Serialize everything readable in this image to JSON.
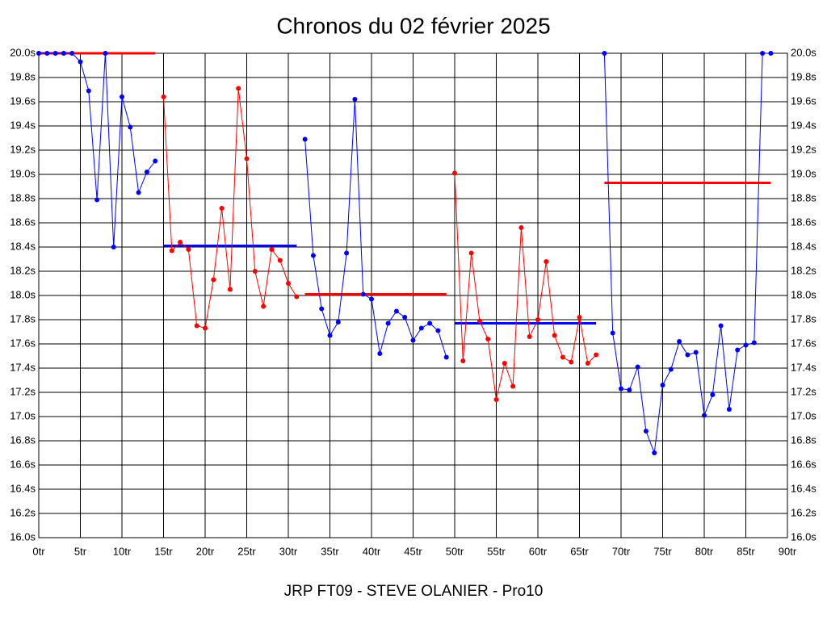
{
  "chart_data": {
    "type": "line",
    "title": "Chronos du 02 février 2025",
    "footer": "JRP FT09 - STEVE OLANIER - Pro10",
    "xlim": [
      0,
      90
    ],
    "ylim": [
      16.0,
      20.0
    ],
    "grid": true,
    "xticks": [
      {
        "value": 0,
        "label": "0tr"
      },
      {
        "value": 5,
        "label": "5tr"
      },
      {
        "value": 10,
        "label": "10tr"
      },
      {
        "value": 15,
        "label": "15tr"
      },
      {
        "value": 20,
        "label": "20tr"
      },
      {
        "value": 25,
        "label": "25tr"
      },
      {
        "value": 30,
        "label": "30tr"
      },
      {
        "value": 35,
        "label": "35tr"
      },
      {
        "value": 40,
        "label": "40tr"
      },
      {
        "value": 45,
        "label": "45tr"
      },
      {
        "value": 50,
        "label": "50tr"
      },
      {
        "value": 55,
        "label": "55tr"
      },
      {
        "value": 60,
        "label": "60tr"
      },
      {
        "value": 65,
        "label": "65tr"
      },
      {
        "value": 70,
        "label": "70tr"
      },
      {
        "value": 75,
        "label": "75tr"
      },
      {
        "value": 80,
        "label": "80tr"
      },
      {
        "value": 85,
        "label": "85tr"
      },
      {
        "value": 90,
        "label": "90tr"
      }
    ],
    "yticks": [
      {
        "value": 16.0,
        "label": "16.0s"
      },
      {
        "value": 16.2,
        "label": "16.2s"
      },
      {
        "value": 16.4,
        "label": "16.4s"
      },
      {
        "value": 16.6,
        "label": "16.6s"
      },
      {
        "value": 16.8,
        "label": "16.8s"
      },
      {
        "value": 17.0,
        "label": "17.0s"
      },
      {
        "value": 17.2,
        "label": "17.2s"
      },
      {
        "value": 17.4,
        "label": "17.4s"
      },
      {
        "value": 17.6,
        "label": "17.6s"
      },
      {
        "value": 17.8,
        "label": "17.8s"
      },
      {
        "value": 18.0,
        "label": "18.0s"
      },
      {
        "value": 18.2,
        "label": "18.2s"
      },
      {
        "value": 18.4,
        "label": "18.4s"
      },
      {
        "value": 18.6,
        "label": "18.6s"
      },
      {
        "value": 18.8,
        "label": "18.8s"
      },
      {
        "value": 19.0,
        "label": "19.0s"
      },
      {
        "value": 19.2,
        "label": "19.2s"
      },
      {
        "value": 19.4,
        "label": "19.4s"
      },
      {
        "value": 19.6,
        "label": "19.6s"
      },
      {
        "value": 19.8,
        "label": "19.8s"
      },
      {
        "value": 20.0,
        "label": "20.0s"
      }
    ],
    "series": [
      {
        "color": "#0000ff",
        "x": [
          0,
          1,
          2,
          3,
          4,
          5,
          6,
          7,
          8,
          9,
          10,
          11,
          12,
          13,
          14
        ],
        "values": [
          20.0,
          20.0,
          20.0,
          20.0,
          20.0,
          19.93,
          19.69,
          18.79,
          20.0,
          18.4,
          19.64,
          19.39,
          18.85,
          19.02,
          19.11
        ]
      },
      {
        "color": "#ff0000",
        "x": [
          15,
          16,
          17,
          18,
          19,
          20,
          21,
          22,
          23,
          24,
          25,
          26,
          27,
          28,
          29,
          30,
          31
        ],
        "values": [
          19.64,
          18.37,
          18.44,
          18.38,
          17.75,
          17.73,
          18.13,
          18.72,
          18.05,
          19.71,
          19.13,
          18.2,
          17.91,
          18.38,
          18.29,
          18.1,
          17.99
        ]
      },
      {
        "color": "#0000ff",
        "x": [
          32,
          33,
          34,
          35,
          36,
          37,
          38,
          39,
          40,
          41,
          42,
          43,
          44,
          45,
          46,
          47,
          48,
          49
        ],
        "values": [
          19.29,
          18.33,
          17.89,
          17.67,
          17.78,
          18.35,
          19.62,
          18.01,
          17.97,
          17.52,
          17.77,
          17.87,
          17.82,
          17.63,
          17.73,
          17.77,
          17.71,
          17.49
        ]
      },
      {
        "color": "#ff0000",
        "x": [
          50,
          51,
          52,
          53,
          54,
          55,
          56,
          57,
          58,
          59,
          60,
          61,
          62,
          63,
          64,
          65,
          66,
          67
        ],
        "values": [
          19.01,
          17.46,
          18.35,
          17.79,
          17.64,
          17.14,
          17.44,
          17.25,
          18.56,
          17.66,
          17.8,
          18.28,
          17.67,
          17.49,
          17.45,
          17.82,
          17.44,
          17.51
        ]
      },
      {
        "color": "#0000ff",
        "x": [
          68,
          69,
          70,
          71,
          72,
          73,
          74,
          75,
          76,
          77,
          78,
          79,
          80,
          81,
          82,
          83,
          84,
          85,
          86,
          87,
          88
        ],
        "values": [
          20.0,
          17.69,
          17.23,
          17.22,
          17.41,
          16.88,
          16.7,
          17.26,
          17.39,
          17.62,
          17.51,
          17.53,
          17.01,
          17.18,
          17.75,
          17.06,
          17.55,
          17.59,
          17.61,
          20.0,
          20.0
        ]
      }
    ],
    "mean_lines": [
      {
        "color": "#ff0000",
        "x": [
          0,
          14
        ],
        "value": 20.0
      },
      {
        "color": "#0000ff",
        "x": [
          15,
          31
        ],
        "value": 18.41
      },
      {
        "color": "#ff0000",
        "x": [
          32,
          49
        ],
        "value": 18.01
      },
      {
        "color": "#0000ff",
        "x": [
          50,
          67
        ],
        "value": 17.77
      },
      {
        "color": "#ff0000",
        "x": [
          68,
          88
        ],
        "value": 18.93
      }
    ]
  }
}
